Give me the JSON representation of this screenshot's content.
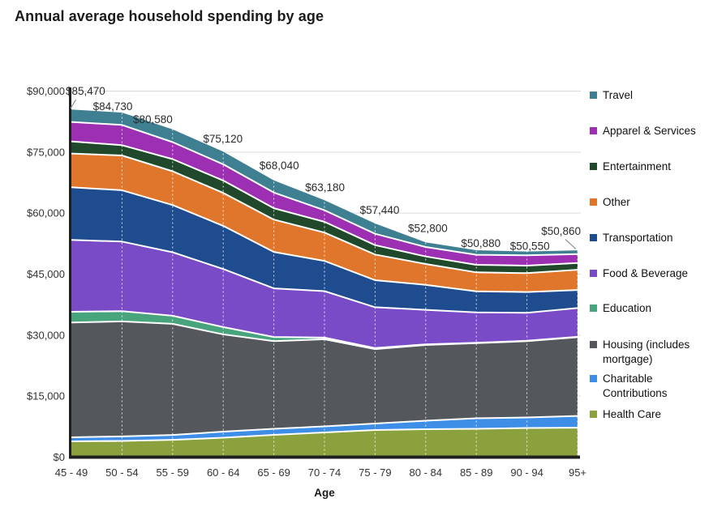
{
  "title": "Annual average household spending by age",
  "chart_data": {
    "type": "area",
    "stacked": true,
    "title": "Annual average household spending by age",
    "xlabel": "Age",
    "ylabel": "",
    "legend_position": "right",
    "grid": {
      "horizontal": true,
      "vertical_dashed_white": true
    },
    "y_axis": {
      "min": 0,
      "max": 90000,
      "step": 15000,
      "tick_labels": [
        "$90,000",
        "$75,000",
        "$60,000",
        "$45,000",
        "$30,000",
        "$15,000",
        "$0"
      ]
    },
    "categories": [
      "45 - 49",
      "50 - 54",
      "55 - 59",
      "60 - 64",
      "65 - 69",
      "70 - 74",
      "75 - 79",
      "80 - 84",
      "85 - 89",
      "90 - 94",
      "95+"
    ],
    "total_labels": [
      "$85,470",
      "$84,730",
      "$80,580",
      "$75,120",
      "$68,040",
      "$63,180",
      "$57,440",
      "$52,800",
      "$50,880",
      "$50,550",
      "$50,860"
    ],
    "totals": [
      85470,
      84730,
      80580,
      75120,
      68040,
      63180,
      57440,
      52800,
      50880,
      50550,
      50860
    ],
    "series": [
      {
        "name": "Travel",
        "color": "#3E7F91",
        "values": [
          3060,
          3050,
          3120,
          3120,
          2990,
          2460,
          2520,
          1130,
          1130,
          930,
          930
        ]
      },
      {
        "name": "Apparel & Services",
        "color": "#9C2FB2",
        "values": [
          4780,
          4980,
          4180,
          3980,
          3850,
          2850,
          2790,
          2320,
          2460,
          2520,
          2190
        ]
      },
      {
        "name": "Entertainment",
        "color": "#20492C",
        "values": [
          2990,
          2520,
          2990,
          3050,
          2790,
          2660,
          2320,
          1860,
          1860,
          1860,
          1660
        ]
      },
      {
        "name": "Other",
        "color": "#E0762B",
        "values": [
          8300,
          8560,
          8300,
          8100,
          7960,
          6970,
          6310,
          5110,
          4650,
          4650,
          4980
        ]
      },
      {
        "name": "Transportation",
        "color": "#1E4C8E",
        "values": [
          12940,
          12610,
          11620,
          10620,
          8960,
          7430,
          6640,
          6170,
          5180,
          5110,
          4450
        ]
      },
      {
        "name": "Food & Beverage",
        "color": "#7A4BC6",
        "values": [
          17650,
          17120,
          15600,
          14270,
          11950,
          11420,
          10040,
          8480,
          7470,
          6870,
          7070
        ]
      },
      {
        "name": "Education",
        "color": "#47A47C",
        "values": [
          2660,
          2520,
          1990,
          1790,
          1000,
          400,
          250,
          150,
          100,
          100,
          100
        ]
      },
      {
        "name": "Housing (includes mortgage)",
        "color": "#54575B",
        "values": [
          28210,
          28280,
          27320,
          23920,
          21580,
          21430,
          18310,
          18620,
          18470,
          18760,
          19340
        ]
      },
      {
        "name": "Charitable Contributions",
        "color": "#3E8EE8",
        "values": [
          1000,
          1100,
          1190,
          1490,
          1490,
          1490,
          1590,
          2090,
          2590,
          2590,
          2890
        ]
      },
      {
        "name": "Health Care",
        "color": "#8BA13E",
        "values": [
          3880,
          3990,
          4270,
          4780,
          5470,
          6070,
          6670,
          6870,
          6970,
          7160,
          7250
        ]
      }
    ]
  }
}
